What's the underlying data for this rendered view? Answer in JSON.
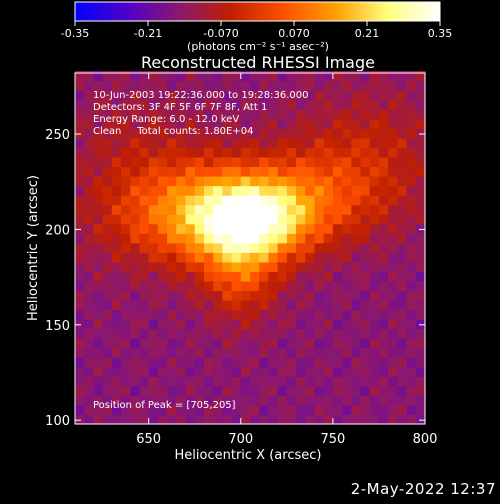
{
  "colorbar": {
    "ticks": [
      "-0.35",
      "-0.21",
      "-0.070",
      "0.070",
      "0.21",
      "0.35"
    ],
    "tick_values": [
      -0.35,
      -0.21,
      -0.07,
      0.07,
      0.21,
      0.35
    ],
    "range": [
      -0.35,
      0.35
    ],
    "unit_label": "(photons cm⁻² s⁻¹ asec⁻²)",
    "colors": [
      "#0000ff",
      "#5000c8",
      "#8a1870",
      "#c02000",
      "#ff5000",
      "#ffa000",
      "#ffff80",
      "#ffffff"
    ]
  },
  "plot": {
    "title": "Reconstructed RHESSI Image",
    "annotations": [
      "10-Jun-2003 19:22:36.000 to 19:28:36.000",
      "Detectors: 3F 4F 5F 6F 7F 8F, Att 1",
      "Energy Range: 6.0 - 12.0 keV",
      "Clean     Total counts: 1.80E+04"
    ],
    "peak_label": "Position of Peak = [705,205]"
  },
  "footer": {
    "timestamp": "2-May-2022 12:37"
  },
  "chart_data": {
    "type": "heatmap",
    "title": "Reconstructed RHESSI Image",
    "xlabel": "Heliocentric X (arcsec)",
    "ylabel": "Heliocentric Y (arcsec)",
    "xlim": [
      610,
      800
    ],
    "ylim": [
      98,
      282
    ],
    "xticks": [
      650,
      700,
      750,
      800
    ],
    "yticks": [
      100,
      150,
      200,
      250
    ],
    "colorbar_range": [
      -0.35,
      0.35
    ],
    "colorbar_unit": "(photons cm⁻² s⁻¹ asec⁻²)",
    "peak_position": [
      705,
      205
    ],
    "sources": [
      {
        "x": 705,
        "y": 205,
        "sigma_x": 22,
        "sigma_y": 14,
        "amplitude": 0.35
      },
      {
        "x": 672,
        "y": 210,
        "sigma_x": 34,
        "sigma_y": 20,
        "amplitude": 0.24
      },
      {
        "x": 700,
        "y": 178,
        "sigma_x": 14,
        "sigma_y": 18,
        "amplitude": 0.16
      },
      {
        "x": 740,
        "y": 218,
        "sigma_x": 32,
        "sigma_y": 18,
        "amplitude": 0.15
      },
      {
        "x": 770,
        "y": 245,
        "sigma_x": 28,
        "sigma_y": 22,
        "amplitude": 0.08
      },
      {
        "x": 640,
        "y": 250,
        "sigma_x": 25,
        "sigma_y": 18,
        "amplitude": 0.05
      }
    ],
    "background_level": -0.15
  }
}
